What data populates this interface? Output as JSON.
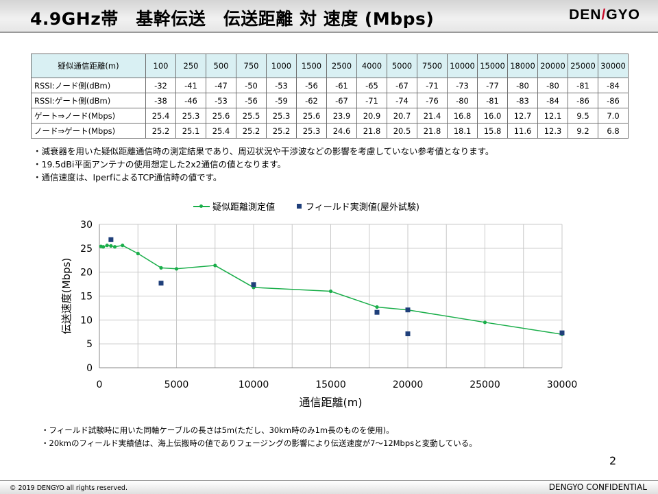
{
  "header": {
    "title": "4.9GHz帯　基幹伝送　伝送距離 対 速度 (Mbps)",
    "logo_left": "DEN",
    "logo_mark": "/",
    "logo_right": "GYO"
  },
  "table": {
    "header_label": "疑似通信距離(m)",
    "distances": [
      "100",
      "250",
      "500",
      "750",
      "1000",
      "1500",
      "2500",
      "4000",
      "5000",
      "7500",
      "10000",
      "15000",
      "18000",
      "20000",
      "25000",
      "30000"
    ],
    "rows": [
      {
        "label": "RSSI:ノード側(dBm)",
        "values": [
          "-32",
          "-41",
          "-47",
          "-50",
          "-53",
          "-56",
          "-61",
          "-65",
          "-67",
          "-71",
          "-73",
          "-77",
          "-80",
          "-80",
          "-81",
          "-84"
        ]
      },
      {
        "label": "RSSI:ゲート側(dBm)",
        "values": [
          "-38",
          "-46",
          "-53",
          "-56",
          "-59",
          "-62",
          "-67",
          "-71",
          "-74",
          "-76",
          "-80",
          "-81",
          "-83",
          "-84",
          "-86",
          "-86"
        ]
      },
      {
        "label": "ゲート⇒ノード(Mbps)",
        "values": [
          "25.4",
          "25.3",
          "25.6",
          "25.5",
          "25.3",
          "25.6",
          "23.9",
          "20.9",
          "20.7",
          "21.4",
          "16.8",
          "16.0",
          "12.7",
          "12.1",
          "9.5",
          "7.0"
        ]
      },
      {
        "label": "ノード⇒ゲート(Mbps)",
        "values": [
          "25.2",
          "25.1",
          "25.4",
          "25.2",
          "25.2",
          "25.3",
          "24.6",
          "21.8",
          "20.5",
          "21.8",
          "18.1",
          "15.8",
          "11.6",
          "12.3",
          "9.2",
          "6.8"
        ]
      }
    ]
  },
  "notes_top": [
    "・減衰器を用いた疑似距離通信時の測定結果であり、周辺状況や干渉波などの影響を考慮していない参考値となります。",
    "・19.5dBi平面アンテナの使用想定した2x2通信の値となります。",
    "・通信速度は、IperfによるTCP通信時の値です。"
  ],
  "chart_data": {
    "type": "scatter",
    "title": "",
    "xlabel": "通信距離(m)",
    "ylabel": "伝送速度(Mbps)",
    "xlim": [
      0,
      30000
    ],
    "ylim": [
      0,
      30
    ],
    "xticks": [
      0,
      5000,
      10000,
      15000,
      20000,
      25000,
      30000
    ],
    "yticks": [
      0,
      5,
      10,
      15,
      20,
      25,
      30
    ],
    "grid": true,
    "legend_position": "top",
    "series": [
      {
        "name": "疑似距離測定値",
        "style": "line-markers",
        "color": "#1aae4a",
        "x": [
          100,
          250,
          500,
          750,
          1000,
          1500,
          2500,
          4000,
          5000,
          7500,
          10000,
          15000,
          18000,
          20000,
          25000,
          30000
        ],
        "y": [
          25.4,
          25.3,
          25.6,
          25.5,
          25.3,
          25.6,
          23.9,
          20.9,
          20.7,
          21.4,
          16.8,
          16.0,
          12.7,
          12.1,
          9.5,
          7.0
        ]
      },
      {
        "name": "フィールド実測値(屋外試験)",
        "style": "markers",
        "color": "#1f3f7a",
        "x": [
          750,
          4000,
          10000,
          18000,
          20000,
          20000,
          30000
        ],
        "y": [
          26.8,
          17.7,
          17.4,
          11.6,
          12.1,
          7.1,
          7.3
        ]
      }
    ]
  },
  "notes_bottom": [
    "・フィールド試験時に用いた同軸ケーブルの長さは5m(ただし、30km時のみ1m長のものを使用)。",
    "・20kmのフィールド実績値は、海上伝搬時の値でありフェージングの影響により伝送速度が7～12Mbpsと変動している。"
  ],
  "footer": {
    "page_number": "2",
    "copyright": "© 2019 DENGYO  all rights reserved.",
    "confidential": "DENGYO CONFIDENTIAL"
  }
}
